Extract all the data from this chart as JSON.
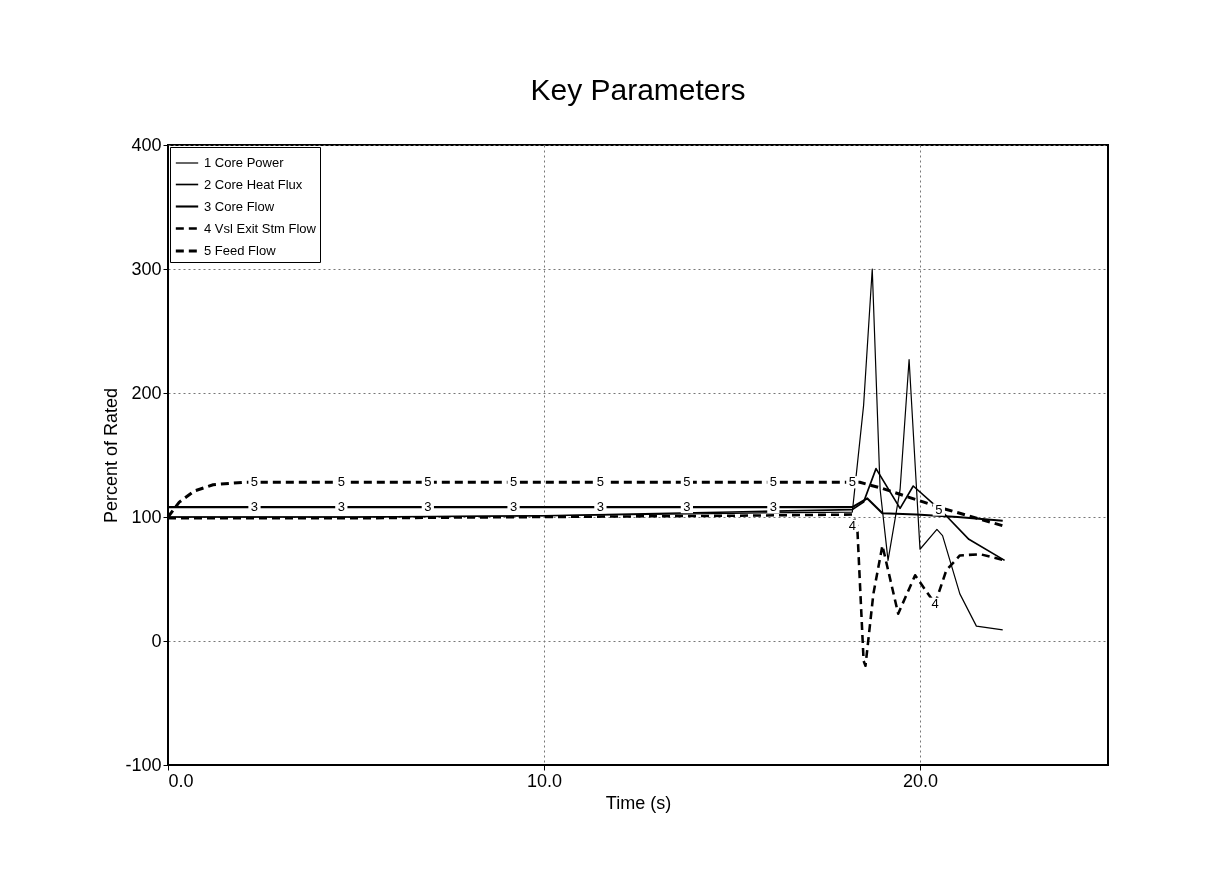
{
  "chart_data": {
    "type": "line",
    "title": "Key Parameters",
    "xlabel": "Time (s)",
    "ylabel": "Percent of Rated",
    "xlim": [
      0,
      25
    ],
    "xticks": [
      {
        "value": 0,
        "label": "0.0"
      },
      {
        "value": 10,
        "label": "10.0"
      },
      {
        "value": 20,
        "label": "20.0"
      }
    ],
    "ylim": [
      -100,
      400
    ],
    "yticks": [
      -100,
      0,
      100,
      200,
      300,
      400
    ],
    "grid": true,
    "legend": "top left",
    "marker": "none",
    "series": [
      {
        "name": "1 Core Power",
        "color": "#000000",
        "line_style": "solid",
        "x": [
          0,
          5,
          10,
          15,
          18.2,
          18.5,
          18.73,
          18.94,
          19.15,
          19.47,
          19.71,
          20.0,
          20.45,
          20.6,
          21.06,
          21.5,
          22.2
        ],
        "values": [
          100,
          100,
          101,
          103,
          104,
          190,
          300,
          122,
          65,
          122,
          227,
          74,
          90,
          85,
          38,
          12,
          9
        ]
      },
      {
        "name": "2 Core Heat Flux",
        "color": "#000000",
        "line_style": "solid",
        "x": [
          0,
          5,
          10,
          15,
          18.2,
          18.5,
          18.83,
          19.47,
          19.82,
          20.6,
          21.3,
          22.25
        ],
        "values": [
          100,
          100,
          101,
          104,
          106,
          112,
          139,
          107,
          125,
          104,
          82,
          65
        ]
      },
      {
        "name": "3 Core Flow",
        "color": "#000000",
        "line_style": "solid",
        "x": [
          0,
          5,
          10,
          15,
          18.2,
          18.6,
          19.0,
          19.9,
          21.0,
          22.2
        ],
        "values": [
          108,
          108,
          108,
          108,
          108,
          115,
          103,
          102,
          100,
          97
        ]
      },
      {
        "name": "4 Vsl Exit Stm Flow",
        "color": "#000000",
        "line_style": "dashed",
        "x": [
          0,
          5,
          10,
          15,
          18.2,
          18.33,
          18.5,
          18.55,
          18.76,
          19.0,
          19.42,
          19.87,
          20.4,
          20.7,
          21.06,
          21.6,
          22.25
        ],
        "values": [
          99,
          99,
          100,
          101,
          102,
          93,
          -16,
          -20,
          38,
          77,
          22,
          53,
          30,
          57,
          69,
          70,
          65
        ]
      },
      {
        "name": "5 Feed Flow",
        "color": "#000000",
        "line_style": "dashed",
        "x": [
          0,
          0.3,
          0.7,
          1.2,
          2.0,
          5,
          10,
          15,
          18.4,
          19.0,
          20.6,
          22.2
        ],
        "values": [
          100,
          112,
          121,
          126,
          128,
          128,
          128,
          128,
          128,
          123,
          107,
          93
        ]
      }
    ],
    "annotations": [
      {
        "text": "5",
        "x": 2.3,
        "y": 128
      },
      {
        "text": "5",
        "x": 4.61,
        "y": 128
      },
      {
        "text": "5",
        "x": 6.91,
        "y": 128
      },
      {
        "text": "5",
        "x": 9.19,
        "y": 128
      },
      {
        "text": "5",
        "x": 11.5,
        "y": 128
      },
      {
        "text": "5",
        "x": 13.8,
        "y": 128
      },
      {
        "text": "5",
        "x": 16.1,
        "y": 128
      },
      {
        "text": "5",
        "x": 18.2,
        "y": 128
      },
      {
        "text": "3",
        "x": 2.3,
        "y": 108
      },
      {
        "text": "3",
        "x": 4.61,
        "y": 108
      },
      {
        "text": "3",
        "x": 6.91,
        "y": 108
      },
      {
        "text": "3",
        "x": 9.19,
        "y": 108
      },
      {
        "text": "3",
        "x": 11.5,
        "y": 108
      },
      {
        "text": "3",
        "x": 13.8,
        "y": 108
      },
      {
        "text": "3",
        "x": 16.1,
        "y": 108
      },
      {
        "text": "4",
        "x": 18.2,
        "y": 93
      },
      {
        "text": "4",
        "x": 20.4,
        "y": 30
      },
      {
        "text": "5",
        "x": 20.5,
        "y": 106
      }
    ]
  }
}
